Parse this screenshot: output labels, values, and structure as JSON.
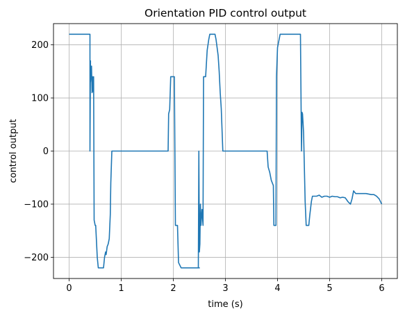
{
  "chart_data": {
    "type": "line",
    "title": "Orientation PID control output",
    "xlabel": "time (s)",
    "ylabel": "control output",
    "xlim": [
      -0.3,
      6.3
    ],
    "ylim": [
      -240,
      240
    ],
    "x_ticks": [
      0,
      1,
      2,
      3,
      4,
      5,
      6
    ],
    "x_tick_labels": [
      "0",
      "1",
      "2",
      "3",
      "4",
      "5",
      "6"
    ],
    "y_ticks": [
      -200,
      -100,
      0,
      100,
      200
    ],
    "y_tick_labels": [
      "−200",
      "−100",
      "0",
      "100",
      "200"
    ],
    "grid": true,
    "series": [
      {
        "color": "#1f77b4",
        "x": [
          0,
          0.4,
          0.4,
          0.41,
          0.41,
          0.43,
          0.44,
          0.45,
          0.46,
          0.47,
          0.48,
          0.5,
          0.51,
          0.54,
          0.56,
          0.6,
          0.66,
          0.68,
          0.7,
          0.71,
          0.73,
          0.75,
          0.77,
          0.79,
          0.8,
          0.82,
          1.0,
          1.5,
          1.9,
          1.91,
          1.93,
          1.95,
          2.0,
          2.02,
          2.04,
          2.08,
          2.1,
          2.15,
          2.3,
          2.5,
          2.48,
          2.49,
          2.5,
          2.51,
          2.52,
          2.53,
          2.55,
          2.57,
          2.58,
          2.62,
          2.65,
          2.68,
          2.7,
          2.75,
          2.8,
          2.82,
          2.84,
          2.86,
          2.88,
          2.9,
          2.92,
          2.95,
          3.0,
          3.5,
          3.8,
          3.82,
          3.85,
          3.88,
          3.9,
          3.92,
          3.93,
          3.95,
          3.97,
          3.98,
          4.0,
          4.05,
          4.1,
          4.44,
          4.44,
          4.46,
          4.47,
          4.48,
          4.5,
          4.53,
          4.55,
          4.57,
          4.6,
          4.62,
          4.65,
          4.67,
          4.7,
          4.75,
          4.8,
          4.85,
          4.9,
          4.95,
          5.0,
          5.05,
          5.1,
          5.15,
          5.2,
          5.25,
          5.3,
          5.35,
          5.38,
          5.4,
          5.43,
          5.46,
          5.5,
          5.6,
          5.7,
          5.8,
          5.85,
          5.9,
          5.95,
          6.0
        ],
        "y": [
          220,
          220,
          0,
          170,
          130,
          160,
          110,
          140,
          112,
          140,
          -130,
          -140,
          -140,
          -200,
          -220,
          -220,
          -220,
          -200,
          -190,
          -195,
          -180,
          -175,
          -165,
          -120,
          -60,
          0,
          0,
          0,
          0,
          70,
          78,
          140,
          140,
          140,
          -140,
          -140,
          -210,
          -220,
          -220,
          -220,
          -220,
          0,
          -190,
          -175,
          -100,
          -140,
          -110,
          -140,
          140,
          140,
          190,
          210,
          220,
          220,
          220,
          210,
          195,
          180,
          150,
          110,
          80,
          0,
          0,
          0,
          0,
          -30,
          -40,
          -55,
          -60,
          -65,
          -140,
          -140,
          -140,
          140,
          195,
          220,
          220,
          220,
          220,
          0,
          73,
          70,
          35,
          -95,
          -140,
          -140,
          -140,
          -120,
          -95,
          -85,
          -85,
          -85,
          -83,
          -87,
          -85,
          -85,
          -87,
          -85,
          -86,
          -86,
          -88,
          -87,
          -88,
          -95,
          -98,
          -100,
          -90,
          -75,
          -80,
          -80,
          -80,
          -82,
          -82,
          -85,
          -90,
          -100
        ]
      }
    ]
  }
}
